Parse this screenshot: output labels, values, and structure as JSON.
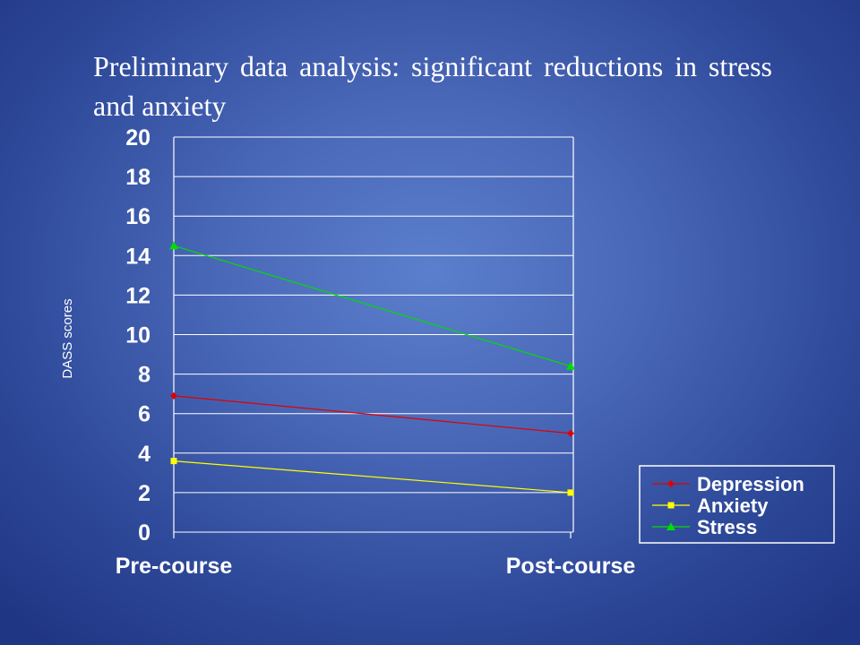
{
  "slide": {
    "title": "Preliminary data analysis: significant reductions in stress and anxiety"
  },
  "chart_data": {
    "type": "line",
    "title": "",
    "xlabel": "",
    "ylabel": "DASS scores",
    "categories": [
      "Pre-course",
      "Post-course"
    ],
    "ylim": [
      0,
      20
    ],
    "yticks": [
      0,
      2,
      4,
      6,
      8,
      10,
      12,
      14,
      16,
      18,
      20
    ],
    "grid": true,
    "legend_position": "bottom-right",
    "series": [
      {
        "name": "Depression",
        "values": [
          6.9,
          5.0
        ],
        "color": "#e00000",
        "marker": "diamond"
      },
      {
        "name": "Anxiety",
        "values": [
          3.6,
          2.0
        ],
        "color": "#ffff00",
        "marker": "square"
      },
      {
        "name": "Stress",
        "values": [
          14.5,
          8.4
        ],
        "color": "#00dd00",
        "marker": "triangle"
      }
    ]
  }
}
